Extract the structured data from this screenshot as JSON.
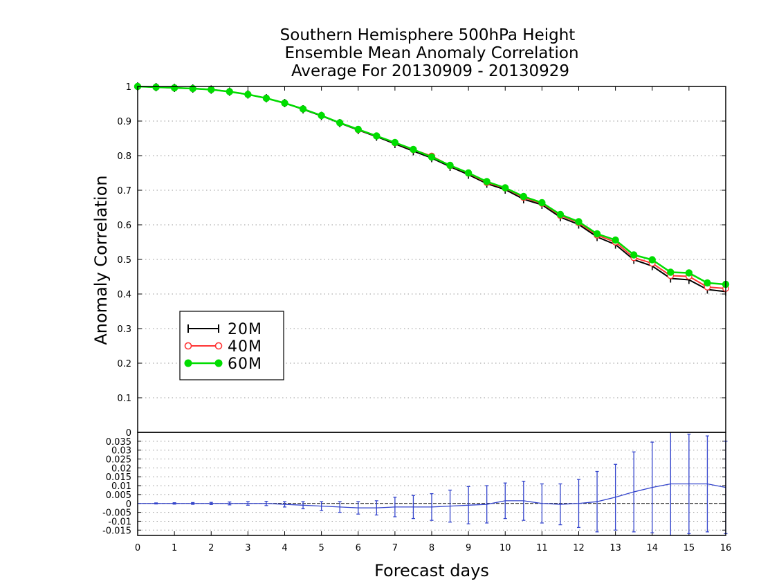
{
  "title_lines": [
    "Southern Hemisphere 500hPa Height",
    "Ensemble Mean Anomaly Correlation",
    "Average For 20130909 - 20130929"
  ],
  "xlabel": "Forecast days",
  "ylabel": "Anomaly Correlation",
  "legend": [
    "20M",
    "40M",
    "60M"
  ],
  "colors": {
    "20M": "#000000",
    "40M": "#ff3333",
    "60M": "#00dd00",
    "diff": "#3344cc",
    "grid": "#999999"
  },
  "chart_data": [
    {
      "type": "line",
      "title": "Southern Hemisphere 500hPa Height Ensemble Mean Anomaly Correlation Average For 20130909 - 20130929",
      "xlabel": "Forecast days",
      "ylabel": "Anomaly Correlation",
      "xlim": [
        0,
        16
      ],
      "ylim": [
        0,
        1
      ],
      "x_ticks": [
        "0",
        "1",
        "2",
        "3",
        "4",
        "5",
        "6",
        "7",
        "8",
        "9",
        "10",
        "11",
        "12",
        "13",
        "14",
        "15",
        "16"
      ],
      "y_ticks": [
        "0",
        "0.1",
        "0.2",
        "0.3",
        "0.4",
        "0.5",
        "0.6",
        "0.7",
        "0.8",
        "0.9",
        "1"
      ],
      "grid": true,
      "legend_position": "left-middle",
      "x": [
        0,
        0.5,
        1,
        1.5,
        2,
        2.5,
        3,
        3.5,
        4,
        4.5,
        5,
        5.5,
        6,
        6.5,
        7,
        7.5,
        8,
        8.5,
        9,
        9.5,
        10,
        10.5,
        11,
        11.5,
        12,
        12.5,
        13,
        13.5,
        14,
        14.5,
        15,
        15.5,
        16
      ],
      "series": [
        {
          "name": "20M",
          "marker": "plus",
          "values": [
            1.0,
            0.998,
            0.996,
            0.994,
            0.991,
            0.985,
            0.977,
            0.966,
            0.952,
            0.934,
            0.915,
            0.894,
            0.874,
            0.855,
            0.834,
            0.813,
            0.793,
            0.768,
            0.745,
            0.719,
            0.702,
            0.674,
            0.658,
            0.622,
            0.601,
            0.565,
            0.543,
            0.499,
            0.481,
            0.445,
            0.441,
            0.413,
            0.407
          ]
        },
        {
          "name": "40M",
          "marker": "open-circle",
          "values": [
            1.0,
            0.998,
            0.996,
            0.994,
            0.991,
            0.985,
            0.977,
            0.966,
            0.952,
            0.935,
            0.916,
            0.895,
            0.875,
            0.857,
            0.837,
            0.817,
            0.799,
            0.771,
            0.749,
            0.722,
            0.706,
            0.679,
            0.662,
            0.627,
            0.606,
            0.57,
            0.55,
            0.505,
            0.489,
            0.453,
            0.451,
            0.42,
            0.416
          ]
        },
        {
          "name": "60M",
          "marker": "filled-circle",
          "values": [
            1.0,
            0.998,
            0.996,
            0.994,
            0.991,
            0.985,
            0.977,
            0.966,
            0.952,
            0.935,
            0.916,
            0.895,
            0.876,
            0.857,
            0.838,
            0.818,
            0.796,
            0.772,
            0.75,
            0.725,
            0.707,
            0.682,
            0.664,
            0.63,
            0.609,
            0.574,
            0.556,
            0.513,
            0.499,
            0.463,
            0.461,
            0.432,
            0.428
          ]
        }
      ]
    },
    {
      "type": "line",
      "xlim": [
        0,
        16
      ],
      "ylim": [
        -0.018,
        0.04
      ],
      "y_ticks": [
        "-0.015",
        "-0.01",
        "-0.005",
        "0",
        "0.005",
        "0.01",
        "0.015",
        "0.02",
        "0.025",
        "0.03",
        "0.035"
      ],
      "top_tick": "0",
      "grid": true,
      "x": [
        0,
        0.5,
        1,
        1.5,
        2,
        2.5,
        3,
        3.5,
        4,
        4.5,
        5,
        5.5,
        6,
        6.5,
        7,
        7.5,
        8,
        8.5,
        9,
        9.5,
        10,
        10.5,
        11,
        11.5,
        12,
        12.5,
        13,
        13.5,
        14,
        14.5,
        15,
        15.5,
        16
      ],
      "series": [
        {
          "name": "",
          "values": [
            0,
            0,
            0,
            0,
            0,
            0,
            0,
            0,
            -0.0005,
            -0.001,
            -0.0015,
            -0.002,
            -0.0025,
            -0.0025,
            -0.002,
            -0.002,
            -0.002,
            -0.0015,
            -0.001,
            -0.0005,
            0.0015,
            0.0015,
            0,
            -0.0005,
            0,
            0.001,
            0.0035,
            0.0065,
            0.009,
            0.011,
            0.011,
            0.011,
            0.009
          ],
          "error": [
            0,
            0.0003,
            0.0004,
            0.0005,
            0.0006,
            0.0008,
            0.001,
            0.0012,
            0.0015,
            0.002,
            0.0025,
            0.003,
            0.0035,
            0.004,
            0.0055,
            0.0065,
            0.0075,
            0.009,
            0.0105,
            0.0105,
            0.01,
            0.011,
            0.011,
            0.0115,
            0.0135,
            0.017,
            0.0185,
            0.0225,
            0.0255,
            0.029,
            0.028,
            0.027,
            0.026
          ]
        }
      ]
    }
  ]
}
